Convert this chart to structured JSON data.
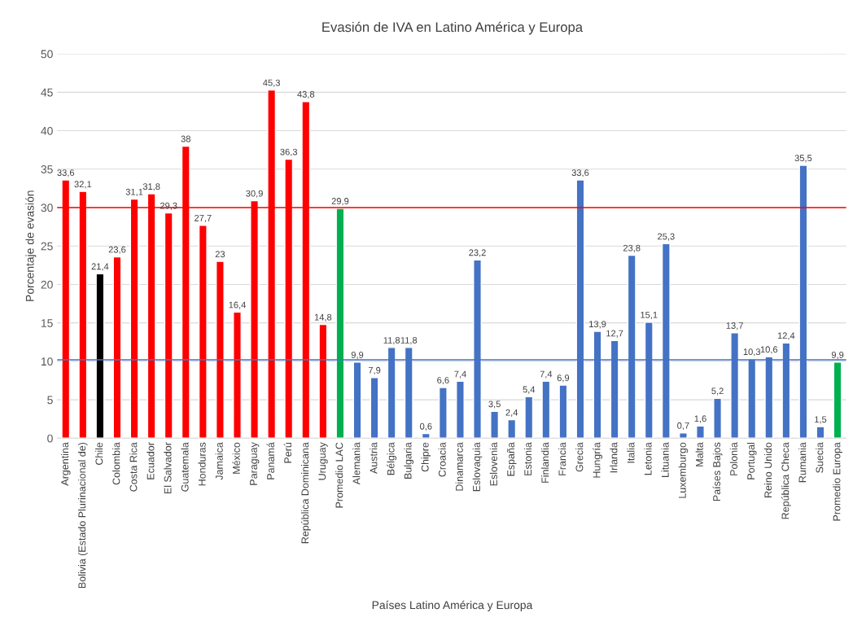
{
  "chart_data": {
    "type": "bar",
    "title": "Evasión de IVA en Latino América y Europa",
    "xlabel": "Países Latino América y Europa",
    "ylabel": "Porcentaje de evasión",
    "categories": [
      "Argentina",
      "Bolivia (Estado Plurinacional de)",
      "Chile",
      "Colombia",
      "Costa Rica",
      "Ecuador",
      "El Salvador",
      "Guatemala",
      "Honduras",
      "Jamaica",
      "México",
      "Paraguay",
      "Panamá",
      "Perú",
      "República Dominicana",
      "Uruguay",
      "Promedio LAC",
      "Alemania",
      "Austria",
      "Bélgica",
      "Bulgaria",
      "Chipre",
      "Croacia",
      "Dinamarca",
      "Eslovaquia",
      "Eslovenia",
      "España",
      "Estonia",
      "Finlandia",
      "Francia",
      "Grecia",
      "Hungría",
      "Irlanda",
      "Italia",
      "Letonia",
      "Lituania",
      "Luxemburgo",
      "Malta",
      "Países Bajos",
      "Polonia",
      "Portugal",
      "Reino Unido",
      "República Checa",
      "Rumania",
      "Suecia",
      "Promedio Europa"
    ],
    "values": [
      33.6,
      32.1,
      21.4,
      23.6,
      31.1,
      31.8,
      29.3,
      38,
      27.7,
      23,
      16.4,
      30.9,
      45.3,
      36.3,
      43.8,
      14.8,
      29.9,
      9.9,
      7.9,
      11.8,
      11.8,
      0.6,
      6.6,
      7.4,
      23.2,
      3.5,
      2.4,
      5.4,
      7.4,
      6.9,
      33.6,
      13.9,
      12.7,
      23.8,
      15.1,
      25.3,
      0.7,
      1.6,
      5.2,
      13.7,
      10.3,
      10.6,
      12.4,
      35.5,
      1.5,
      9.9
    ],
    "value_labels": [
      "33,6",
      "32,1",
      "21,4",
      "23,6",
      "31,1",
      "31,8",
      "29,3",
      "38",
      "27,7",
      "23",
      "16,4",
      "30,9",
      "45,3",
      "36,3",
      "43,8",
      "14,8",
      "29,9",
      "9,9",
      "7,9",
      "11,8",
      "11,8",
      "0,6",
      "6,6",
      "7,4",
      "23,2",
      "3,5",
      "2,4",
      "5,4",
      "7,4",
      "6,9",
      "33,6",
      "13,9",
      "12,7",
      "23,8",
      "15,1",
      "25,3",
      "0,7",
      "1,6",
      "5,2",
      "13,7",
      "10,3",
      "10,6",
      "12,4",
      "35,5",
      "1,5",
      "9,9"
    ],
    "colors": [
      "#ff0000",
      "#ff0000",
      "#000000",
      "#ff0000",
      "#ff0000",
      "#ff0000",
      "#ff0000",
      "#ff0000",
      "#ff0000",
      "#ff0000",
      "#ff0000",
      "#ff0000",
      "#ff0000",
      "#ff0000",
      "#ff0000",
      "#ff0000",
      "#00b050",
      "#4472c4",
      "#4472c4",
      "#4472c4",
      "#4472c4",
      "#4472c4",
      "#4472c4",
      "#4472c4",
      "#4472c4",
      "#4472c4",
      "#4472c4",
      "#4472c4",
      "#4472c4",
      "#4472c4",
      "#4472c4",
      "#4472c4",
      "#4472c4",
      "#4472c4",
      "#4472c4",
      "#4472c4",
      "#4472c4",
      "#4472c4",
      "#4472c4",
      "#4472c4",
      "#4472c4",
      "#4472c4",
      "#4472c4",
      "#4472c4",
      "#4472c4",
      "#00b050"
    ],
    "ylim": [
      0,
      50
    ],
    "yticks": [
      0,
      5,
      10,
      15,
      20,
      25,
      30,
      35,
      40,
      45,
      50
    ],
    "grid": "y",
    "ref_lines": [
      {
        "axis": "y",
        "value": 30,
        "color": "#ff0000"
      },
      {
        "axis": "y",
        "value": 10.2,
        "color": "#4472c4"
      }
    ]
  }
}
